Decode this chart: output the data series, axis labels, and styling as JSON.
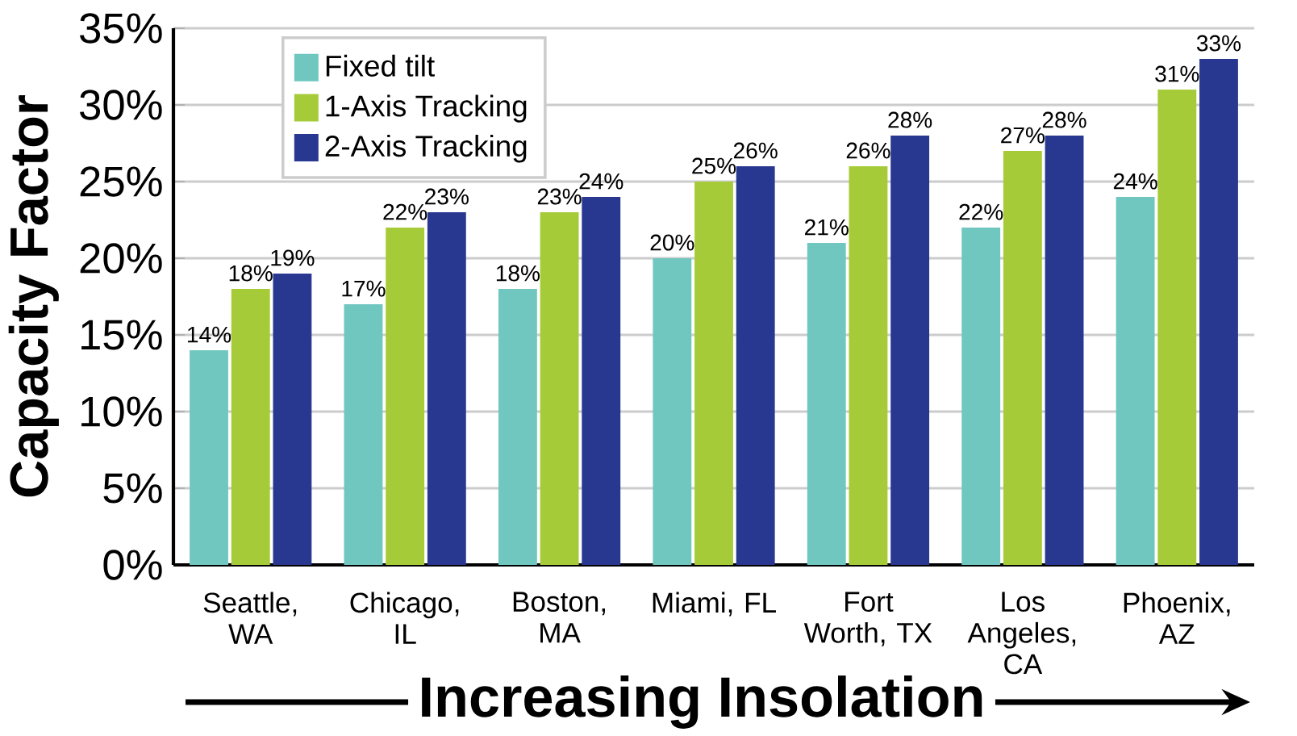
{
  "chart_data": {
    "type": "bar",
    "ylabel": "Capacity Factor",
    "xlabel": "Increasing Insolation",
    "categories": [
      "Seattle, WA",
      "Chicago, IL",
      "Boston, MA",
      "Miami, FL",
      "Fort Worth, TX",
      "Los Angeles, CA",
      "Phoenix, AZ"
    ],
    "series": [
      {
        "name": "Fixed tilt",
        "color": "#6fc7c0",
        "values": [
          14,
          17,
          18,
          20,
          21,
          22,
          24
        ],
        "value_labels": [
          "14%",
          "17%",
          "18%",
          "20%",
          "21%",
          "22%",
          "24%"
        ]
      },
      {
        "name": "1-Axis Tracking",
        "color": "#a6cb38",
        "values": [
          18,
          22,
          23,
          25,
          26,
          27,
          31
        ],
        "value_labels": [
          "18%",
          "22%",
          "23%",
          "25%",
          "26%",
          "27%",
          "31%"
        ]
      },
      {
        "name": "2-Axis Tracking",
        "color": "#283891",
        "values": [
          19,
          23,
          24,
          26,
          28,
          28,
          33
        ],
        "value_labels": [
          "19%",
          "23%",
          "24%",
          "26%",
          "28%",
          "28%",
          "33%"
        ]
      }
    ],
    "ylim": [
      0,
      35
    ],
    "yticks": [
      {
        "value": 0,
        "label": "0%"
      },
      {
        "value": 5,
        "label": "5%"
      },
      {
        "value": 10,
        "label": "10%"
      },
      {
        "value": 15,
        "label": "15%"
      },
      {
        "value": 20,
        "label": "20%"
      },
      {
        "value": 25,
        "label": "25%"
      },
      {
        "value": 30,
        "label": "30%"
      },
      {
        "value": 35,
        "label": "35%"
      }
    ],
    "grid": "y",
    "legend": "top left"
  }
}
